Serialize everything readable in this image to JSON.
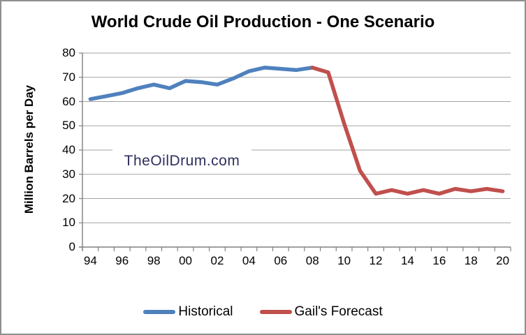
{
  "chart_data": {
    "type": "line",
    "title": "World Crude Oil Production - One Scenario",
    "ylabel": "Million Barrels per Day",
    "xlabel": "",
    "watermark": "TheOilDrum.com",
    "categories": [
      "94",
      "95",
      "96",
      "97",
      "98",
      "99",
      "00",
      "01",
      "02",
      "03",
      "04",
      "05",
      "06",
      "07",
      "08",
      "09",
      "10",
      "11",
      "12",
      "13",
      "14",
      "15",
      "16",
      "17",
      "18",
      "19",
      "20"
    ],
    "x_tick_label_every": 2,
    "ylim": [
      0,
      80
    ],
    "ytick_step": 10,
    "grid": true,
    "legend_position": "bottom",
    "series": [
      {
        "name": "Historical",
        "color": "#4F81BD",
        "start_index": 0,
        "values": [
          61,
          62.2,
          63.5,
          65.5,
          67,
          65.5,
          68.5,
          68,
          67,
          69.5,
          72.5,
          74,
          73.5,
          73,
          74
        ]
      },
      {
        "name": "Gail's Forecast",
        "color": "#C0504D",
        "start_index": 14,
        "values": [
          74,
          72,
          51,
          31.5,
          22,
          23.5,
          22,
          23.5,
          22,
          24,
          23,
          24,
          23
        ]
      }
    ],
    "colors": {
      "gridline": "#a3a3a3",
      "axis": "#808080",
      "text": "#000000",
      "watermark_text": "#2e2e5e"
    }
  }
}
